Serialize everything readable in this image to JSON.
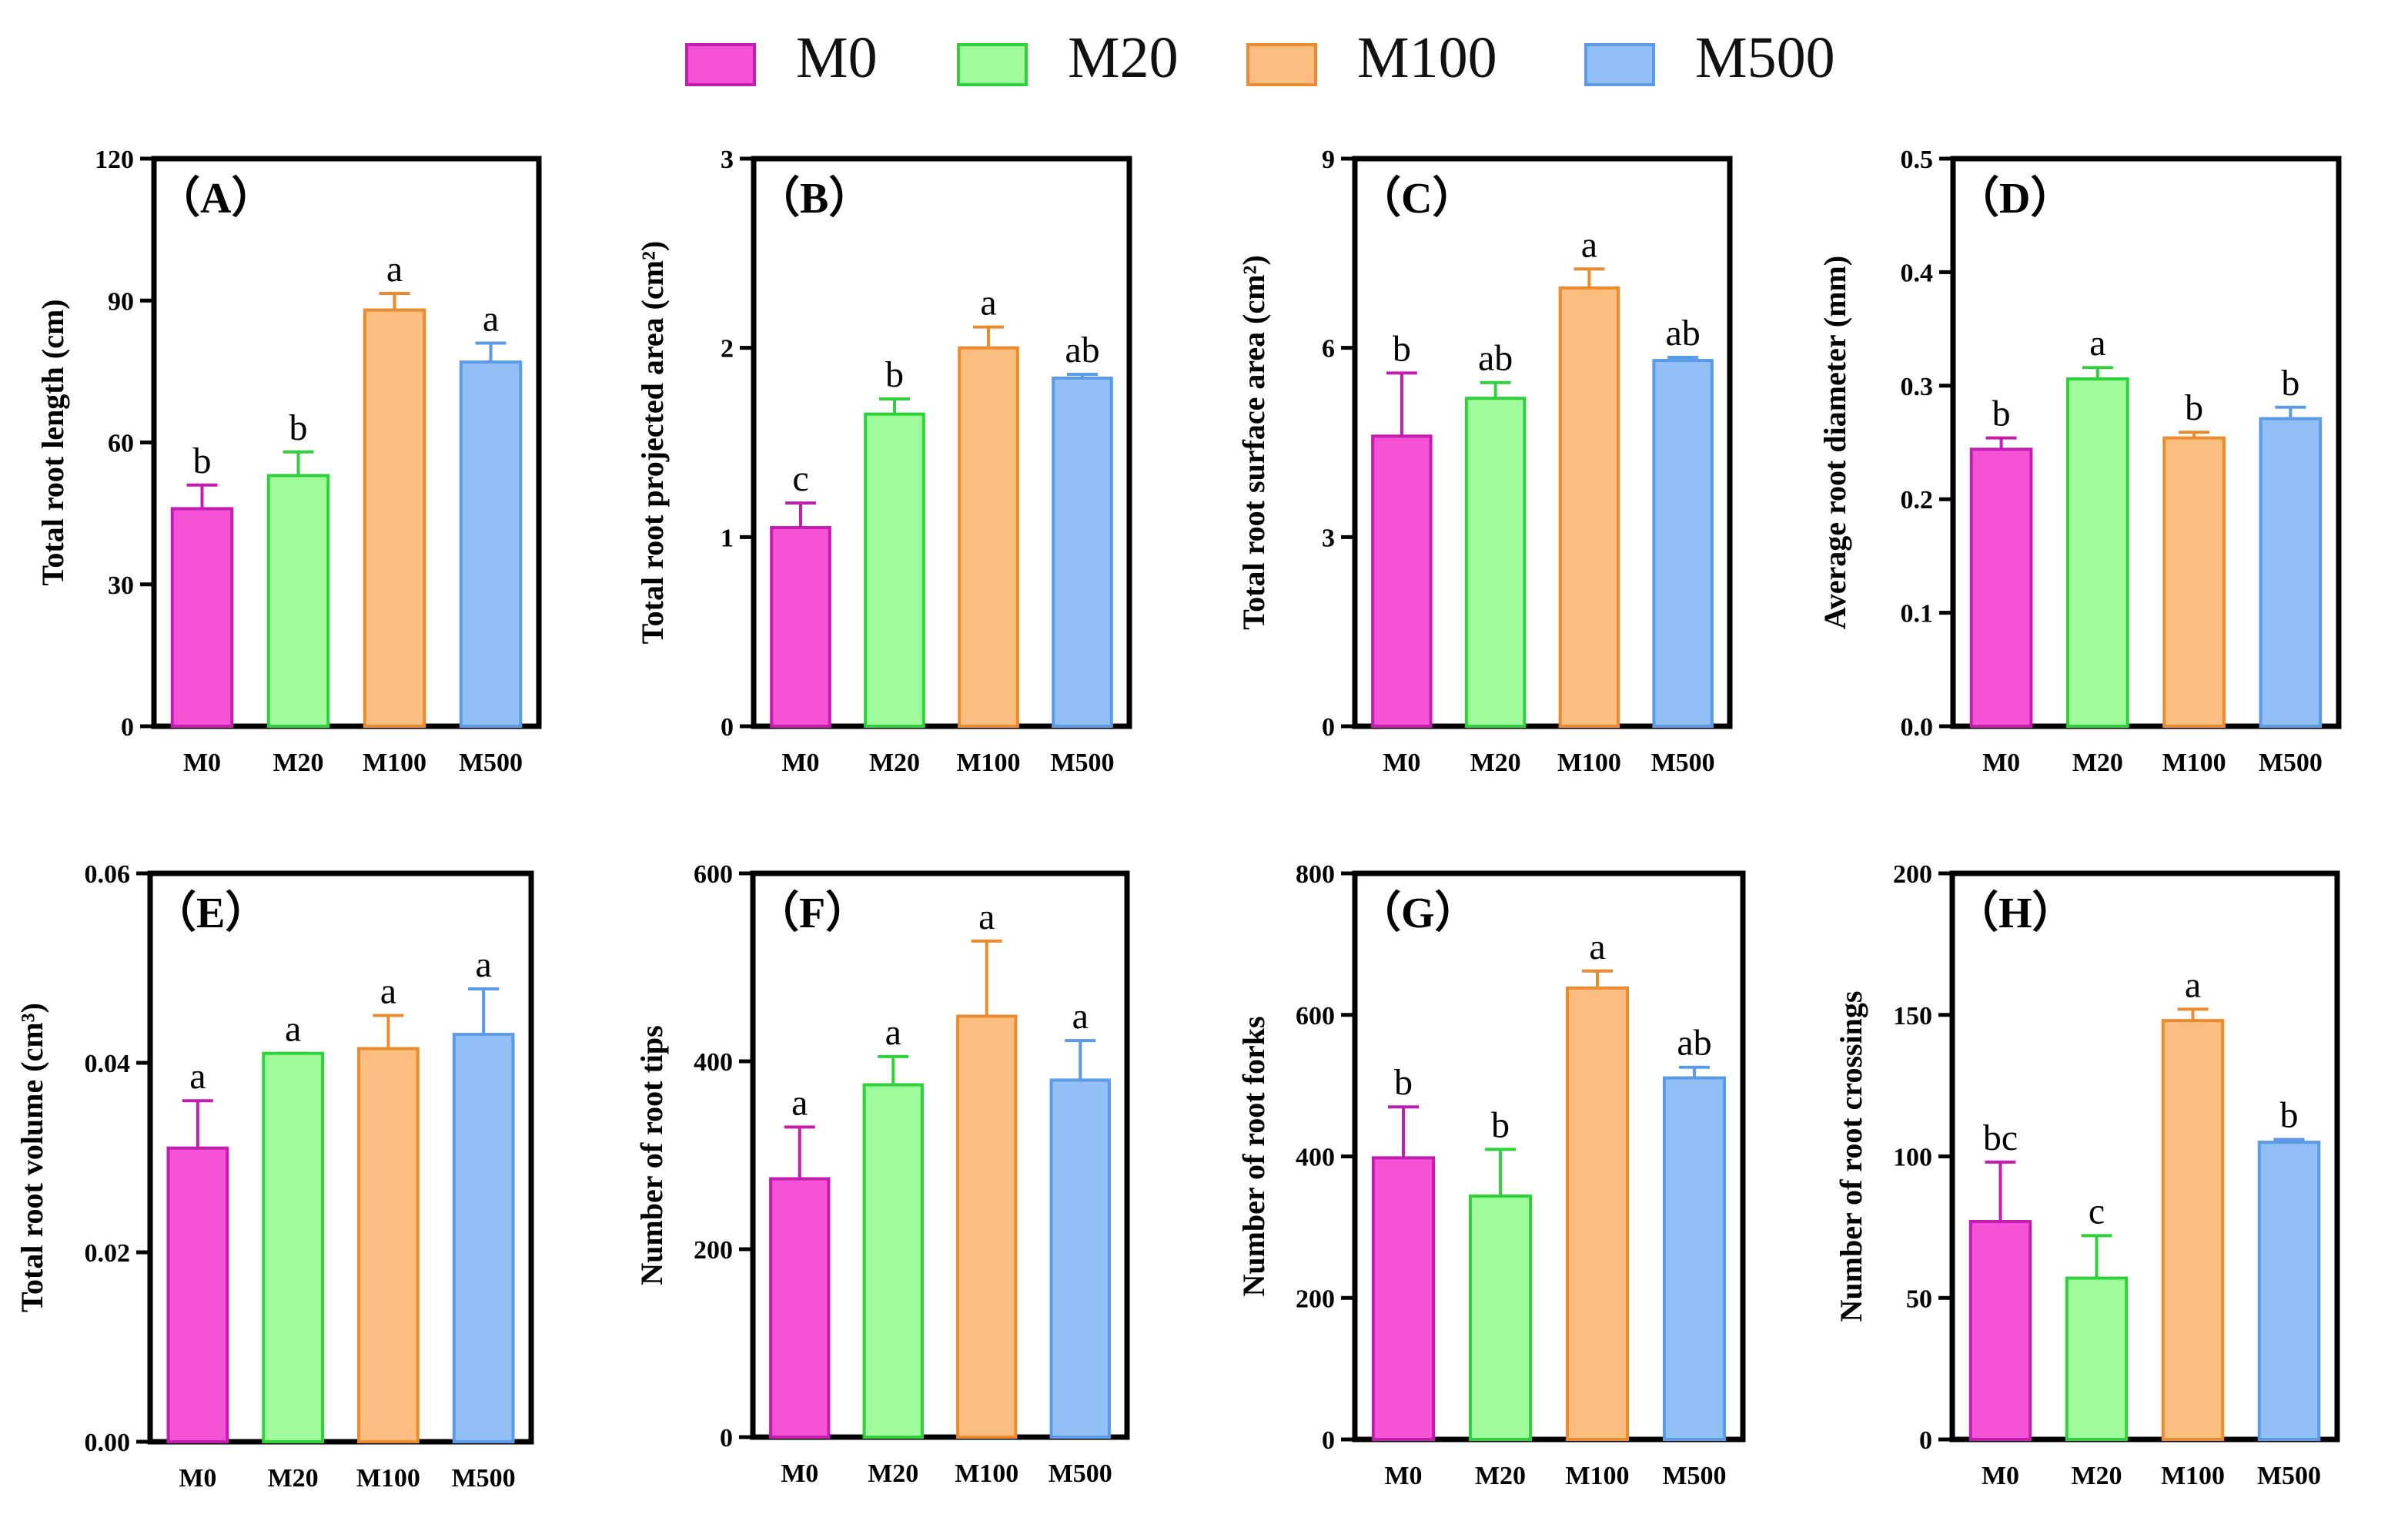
{
  "legend": [
    {
      "label": "M0",
      "fill": "#f552d6",
      "stroke": "#c41cb0"
    },
    {
      "label": "M20",
      "fill": "#a0fc9a",
      "stroke": "#2fd13a"
    },
    {
      "label": "M100",
      "fill": "#fbbd80",
      "stroke": "#ec8a2e"
    },
    {
      "label": "M500",
      "fill": "#93bff7",
      "stroke": "#5a9ae6"
    }
  ],
  "chart_data": [
    {
      "panel": "（A）",
      "type": "bar",
      "ylabel": "Total root length (cm)",
      "categories": [
        "M0",
        "M20",
        "M100",
        "M500"
      ],
      "values": [
        46,
        53,
        88,
        77
      ],
      "errors": [
        5,
        5,
        3.5,
        4
      ],
      "letters": [
        "b",
        "b",
        "a",
        "a"
      ],
      "ylim": [
        0,
        120
      ],
      "ticks": [
        "0",
        "30",
        "60",
        "90",
        "120"
      ]
    },
    {
      "panel": "（B）",
      "type": "bar",
      "ylabel": "Total root projected area  (cm²)",
      "categories": [
        "M0",
        "M20",
        "M100",
        "M500"
      ],
      "values": [
        1.05,
        1.65,
        2.0,
        1.84
      ],
      "errors": [
        0.13,
        0.08,
        0.11,
        0.02
      ],
      "letters": [
        "c",
        "b",
        "a",
        "ab"
      ],
      "ylim": [
        0,
        3
      ],
      "ticks": [
        "0",
        "1",
        "2",
        "3"
      ]
    },
    {
      "panel": "（C）",
      "type": "bar",
      "ylabel": "Total root surface area (cm²)",
      "categories": [
        "M0",
        "M20",
        "M100",
        "M500"
      ],
      "values": [
        4.6,
        5.2,
        6.95,
        5.8
      ],
      "errors": [
        1.0,
        0.25,
        0.3,
        0.05
      ],
      "letters": [
        "b",
        "ab",
        "a",
        "ab"
      ],
      "ylim": [
        0,
        9
      ],
      "ticks": [
        "0",
        "3",
        "6",
        "9"
      ]
    },
    {
      "panel": "（D）",
      "type": "bar",
      "ylabel": "Average root diameter (mm)",
      "categories": [
        "M0",
        "M20",
        "M100",
        "M500"
      ],
      "values": [
        0.244,
        0.306,
        0.254,
        0.271
      ],
      "errors": [
        0.01,
        0.01,
        0.005,
        0.01
      ],
      "letters": [
        "b",
        "a",
        "b",
        "b"
      ],
      "ylim": [
        0,
        0.5
      ],
      "ticks": [
        "0.0",
        "0.1",
        "0.2",
        "0.3",
        "0.4",
        "0.5"
      ]
    },
    {
      "panel": "（E）",
      "type": "bar",
      "ylabel": "Total root volume (cm³)",
      "categories": [
        "M0",
        "M20",
        "M100",
        "M500"
      ],
      "values": [
        0.031,
        0.041,
        0.0415,
        0.043
      ],
      "errors": [
        0.005,
        0,
        0.0035,
        0.0048
      ],
      "letters": [
        "a",
        "a",
        "a",
        "a"
      ],
      "ylim": [
        0,
        0.06
      ],
      "ticks": [
        "0.00",
        "0.02",
        "0.04",
        "0.06"
      ]
    },
    {
      "panel": "（F）",
      "type": "bar",
      "ylabel": "Number of root tips",
      "categories": [
        "M0",
        "M20",
        "M100",
        "M500"
      ],
      "values": [
        275,
        375,
        448,
        380
      ],
      "errors": [
        55,
        30,
        80,
        42
      ],
      "letters": [
        "a",
        "a",
        "a",
        "a"
      ],
      "ylim": [
        0,
        600
      ],
      "ticks": [
        "0",
        "200",
        "400",
        "600"
      ]
    },
    {
      "panel": "（G）",
      "type": "bar",
      "ylabel": "Number of root forks",
      "categories": [
        "M0",
        "M20",
        "M100",
        "M500"
      ],
      "values": [
        398,
        344,
        638,
        511
      ],
      "errors": [
        72,
        66,
        24,
        15
      ],
      "letters": [
        "b",
        "b",
        "a",
        "ab"
      ],
      "ylim": [
        0,
        800
      ],
      "ticks": [
        "0",
        "200",
        "400",
        "600",
        "800"
      ]
    },
    {
      "panel": "（H）",
      "type": "bar",
      "ylabel": "Number of root crossings",
      "categories": [
        "M0",
        "M20",
        "M100",
        "M500"
      ],
      "values": [
        77,
        57,
        148,
        105
      ],
      "errors": [
        21,
        15,
        4,
        1
      ],
      "letters": [
        "bc",
        "c",
        "a",
        "b"
      ],
      "ylim": [
        0,
        200
      ],
      "ticks": [
        "0",
        "50",
        "100",
        "150",
        "200"
      ]
    }
  ]
}
